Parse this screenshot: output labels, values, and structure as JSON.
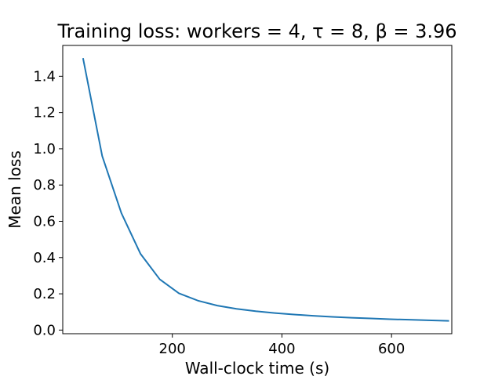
{
  "chart_data": {
    "type": "line",
    "title": "Training loss: workers = 4, τ = 8, β = 3.96",
    "xlabel": "Wall-clock time (s)",
    "ylabel": "Mean loss",
    "xlim": [
      0,
      710
    ],
    "ylim": [
      -0.02,
      1.57
    ],
    "xticks": [
      200,
      400,
      600
    ],
    "xtick_labels": [
      "200",
      "400",
      "600"
    ],
    "yticks": [
      0.0,
      0.2,
      0.4,
      0.6,
      0.8,
      1.0,
      1.2,
      1.4
    ],
    "ytick_labels": [
      "0.0",
      "0.2",
      "0.4",
      "0.6",
      "0.8",
      "1.0",
      "1.2",
      "1.4"
    ],
    "grid": false,
    "series": [
      {
        "color": "#1f77b4",
        "x": [
          37,
          72,
          107,
          142,
          177,
          212,
          247,
          282,
          317,
          352,
          387,
          422,
          457,
          492,
          527,
          562,
          597,
          632,
          667,
          705
        ],
        "y": [
          1.5,
          0.96,
          0.645,
          0.42,
          0.28,
          0.203,
          0.162,
          0.135,
          0.117,
          0.104,
          0.094,
          0.086,
          0.079,
          0.073,
          0.068,
          0.064,
          0.06,
          0.057,
          0.054,
          0.051
        ]
      }
    ]
  }
}
